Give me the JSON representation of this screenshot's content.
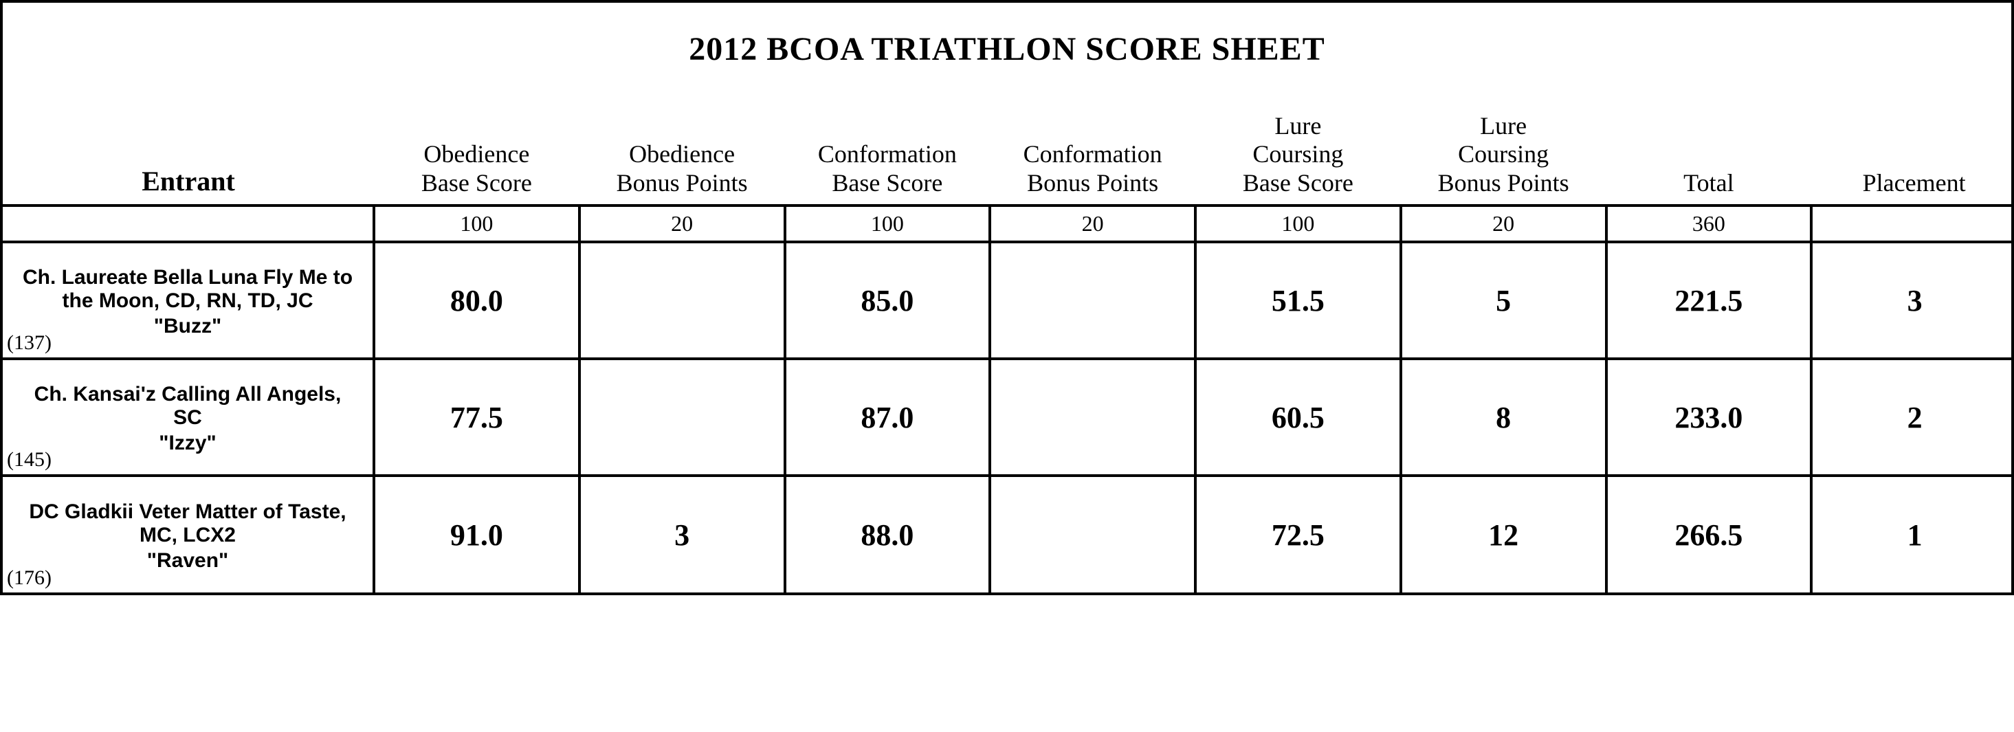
{
  "title": "2012 BCOA TRIATHLON SCORE SHEET",
  "columns": [
    {
      "key": "entrant",
      "lines": [
        "Entrant"
      ],
      "bold": true,
      "max": ""
    },
    {
      "key": "obed_base",
      "lines": [
        "Obedience",
        "Base Score"
      ],
      "bold": false,
      "max": "100"
    },
    {
      "key": "obed_bonus",
      "lines": [
        "Obedience",
        "Bonus Points"
      ],
      "bold": false,
      "max": "20"
    },
    {
      "key": "conf_base",
      "lines": [
        "Conformation",
        "Base Score"
      ],
      "bold": false,
      "max": "100"
    },
    {
      "key": "conf_bonus",
      "lines": [
        "Conformation",
        "Bonus Points"
      ],
      "bold": false,
      "max": "20"
    },
    {
      "key": "lure_base",
      "lines": [
        "Lure",
        "Coursing",
        "Base Score"
      ],
      "bold": false,
      "max": "100"
    },
    {
      "key": "lure_bonus",
      "lines": [
        "Lure",
        "Coursing",
        "Bonus Points"
      ],
      "bold": false,
      "max": "20"
    },
    {
      "key": "total",
      "lines": [
        "Total"
      ],
      "bold": false,
      "max": "360"
    },
    {
      "key": "placement",
      "lines": [
        "Placement"
      ],
      "bold": false,
      "max": ""
    }
  ],
  "rows": [
    {
      "number": "(137)",
      "name": "Ch. Laureate Bella Luna Fly Me to the Moon, CD, RN, TD, JC",
      "nick": "\"Buzz\"",
      "obed_base": "80.0",
      "obed_bonus": "",
      "conf_base": "85.0",
      "conf_bonus": "",
      "lure_base": "51.5",
      "lure_bonus": "5",
      "total": "221.5",
      "placement": "3"
    },
    {
      "number": "(145)",
      "name": "Ch. Kansai'z Calling All Angels, SC",
      "nick": "\"Izzy\"",
      "obed_base": "77.5",
      "obed_bonus": "",
      "conf_base": "87.0",
      "conf_bonus": "",
      "lure_base": "60.5",
      "lure_bonus": "8",
      "total": "233.0",
      "placement": "2"
    },
    {
      "number": "(176)",
      "name": "DC Gladkii Veter Matter of Taste, MC, LCX2",
      "nick": "\"Raven\"",
      "obed_base": "91.0",
      "obed_bonus": "3",
      "conf_base": "88.0",
      "conf_bonus": "",
      "lure_base": "72.5",
      "lure_bonus": "12",
      "total": "266.5",
      "placement": "1"
    }
  ]
}
